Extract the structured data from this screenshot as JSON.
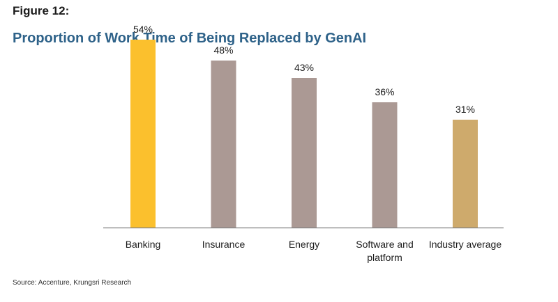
{
  "figure_label": "Figure 12:",
  "source": "Source: Accenture, Krungsri Research",
  "chart_data": {
    "type": "bar",
    "title": "Proportion of Work Time of Being Replaced by GenAI",
    "xlabel": "",
    "ylabel": "",
    "ylim": [
      0,
      60
    ],
    "grid": false,
    "categories": [
      "Banking",
      "Insurance",
      "Energy",
      "Software and platform",
      "Industry average"
    ],
    "category_lines": [
      [
        "Banking"
      ],
      [
        "Insurance"
      ],
      [
        "Energy"
      ],
      [
        "Software and",
        "platform"
      ],
      [
        "Industry average"
      ]
    ],
    "values": [
      54,
      48,
      43,
      36,
      31
    ],
    "value_labels": [
      "54%",
      "48%",
      "43%",
      "36%",
      "31%"
    ],
    "bar_colors": [
      "#fbc02d",
      "#ab9994",
      "#ab9994",
      "#ab9994",
      "#ceaa6c"
    ],
    "axis_color": "#7f7f7f"
  }
}
